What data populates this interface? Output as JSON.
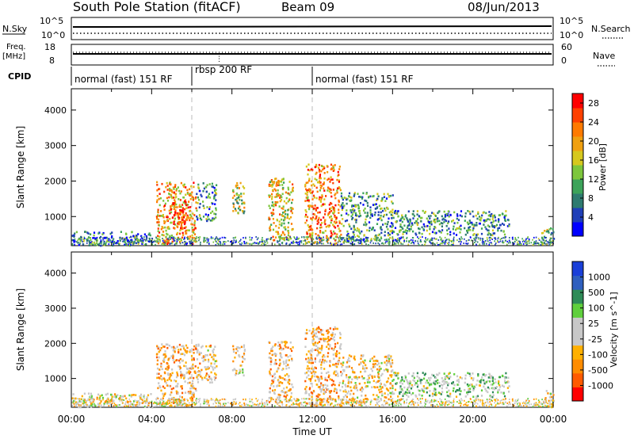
{
  "header": {
    "title": "South Pole Station (fitACF)",
    "beam": "Beam 09",
    "date": "08/Jun/2013"
  },
  "top_panels": {
    "nsky_label": "N.Sky",
    "nsky_ticks": [
      "10^5",
      "10^0"
    ],
    "nsearch_label": "N.Search",
    "nsearch_ticks": [
      "10^5",
      "10^0"
    ],
    "freq_label_1": "Freq.",
    "freq_label_2": "[MHz]",
    "freq_ticks": [
      "18",
      "8"
    ],
    "nave_label": "Nave",
    "nave_ticks": [
      "60",
      "0"
    ],
    "cpid_label": "CPID",
    "cpid_segments": [
      {
        "label": "normal (fast) 151 RF",
        "start_h": 0,
        "end_h": 6
      },
      {
        "label": "rbsp 200 RF",
        "start_h": 6,
        "end_h": 12
      },
      {
        "label": "normal (fast) 151 RF",
        "start_h": 12,
        "end_h": 24
      }
    ]
  },
  "colors": {
    "power_scale": [
      "#0000ff",
      "#1f3fb8",
      "#2e7b70",
      "#3ca35a",
      "#7dc63c",
      "#d6c81e",
      "#f0a010",
      "#ff7a00",
      "#ff4000",
      "#ff0000"
    ],
    "velocity_scale": [
      "#ff0000",
      "#ff5a00",
      "#ff8c00",
      "#ffb000",
      "#c8c8c8",
      "#c8c8c8",
      "#5fcf3c",
      "#2e8b57",
      "#2f5fbf",
      "#1a3fd8"
    ]
  },
  "chart_data": [
    {
      "type": "heatmap",
      "title": "",
      "xlabel": "Time UT",
      "ylabel": "Slant Range [km]",
      "xlim": [
        "00:00",
        "24:00"
      ],
      "ylim": [
        180,
        4600
      ],
      "x_ticks": [
        "00:00",
        "04:00",
        "08:00",
        "12:00",
        "16:00",
        "20:00",
        "00:00"
      ],
      "y_ticks": [
        1000,
        2000,
        3000,
        4000
      ],
      "colorbar": {
        "label": "Power [dB]",
        "ticks": [
          4,
          8,
          12,
          16,
          20,
          24,
          28
        ],
        "range": [
          0,
          30
        ]
      },
      "echo_regions": [
        {
          "start_h": 0.0,
          "end_h": 4.0,
          "min_km": 200,
          "max_km": 600,
          "level": 8
        },
        {
          "start_h": 4.2,
          "end_h": 6.2,
          "min_km": 250,
          "max_km": 2000,
          "level": 20
        },
        {
          "start_h": 5.0,
          "end_h": 5.8,
          "min_km": 700,
          "max_km": 1500,
          "level": 28
        },
        {
          "start_h": 6.2,
          "end_h": 7.2,
          "min_km": 900,
          "max_km": 2000,
          "level": 8
        },
        {
          "start_h": 8.0,
          "end_h": 8.6,
          "min_km": 1100,
          "max_km": 2000,
          "level": 14
        },
        {
          "start_h": 9.8,
          "end_h": 11.0,
          "min_km": 350,
          "max_km": 2100,
          "level": 18
        },
        {
          "start_h": 11.6,
          "end_h": 13.4,
          "min_km": 250,
          "max_km": 2500,
          "level": 22
        },
        {
          "start_h": 13.4,
          "end_h": 16.0,
          "min_km": 300,
          "max_km": 1700,
          "level": 10
        },
        {
          "start_h": 16.0,
          "end_h": 21.8,
          "min_km": 500,
          "max_km": 1200,
          "level": 9
        },
        {
          "start_h": 23.4,
          "end_h": 24.0,
          "min_km": 200,
          "max_km": 700,
          "level": 12
        }
      ]
    },
    {
      "type": "heatmap",
      "title": "",
      "xlabel": "Time UT",
      "ylabel": "Slant Range [km]",
      "xlim": [
        "00:00",
        "24:00"
      ],
      "ylim": [
        180,
        4600
      ],
      "x_ticks": [
        "00:00",
        "04:00",
        "08:00",
        "12:00",
        "16:00",
        "20:00",
        "00:00"
      ],
      "y_ticks": [
        1000,
        2000,
        3000,
        4000
      ],
      "colorbar": {
        "label": "Velocity [m s^-1]",
        "ticks": [
          1000,
          500,
          100,
          25,
          -25,
          -100,
          -500,
          -1000
        ],
        "range": [
          -1000,
          1000
        ]
      },
      "echo_regions": [
        {
          "start_h": 0.0,
          "end_h": 4.0,
          "min_km": 200,
          "max_km": 600,
          "level": -100
        },
        {
          "start_h": 4.2,
          "end_h": 6.2,
          "min_km": 250,
          "max_km": 2000,
          "level": -300
        },
        {
          "start_h": 6.2,
          "end_h": 7.2,
          "min_km": 900,
          "max_km": 2000,
          "level": -200
        },
        {
          "start_h": 8.0,
          "end_h": 8.6,
          "min_km": 1100,
          "max_km": 2000,
          "level": -150
        },
        {
          "start_h": 9.8,
          "end_h": 11.0,
          "min_km": 350,
          "max_km": 2100,
          "level": -250
        },
        {
          "start_h": 11.6,
          "end_h": 13.4,
          "min_km": 250,
          "max_km": 2500,
          "level": -300
        },
        {
          "start_h": 13.4,
          "end_h": 16.0,
          "min_km": 300,
          "max_km": 1700,
          "level": -150
        },
        {
          "start_h": 16.0,
          "end_h": 21.8,
          "min_km": 500,
          "max_km": 1200,
          "level": 150
        },
        {
          "start_h": 23.4,
          "end_h": 24.0,
          "min_km": 200,
          "max_km": 700,
          "level": -100
        }
      ]
    }
  ]
}
